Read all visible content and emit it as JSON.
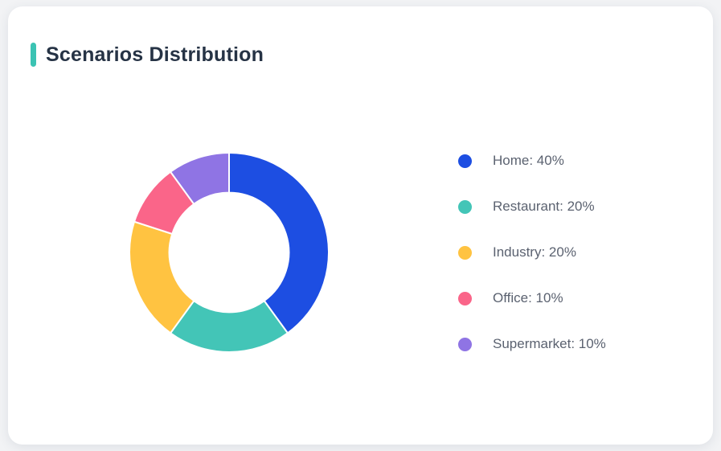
{
  "page": {
    "background_color": "#f2f3f5",
    "card_background": "#ffffff"
  },
  "card": {
    "title": "Scenarios Distribution",
    "accent_color": "#3bc3b3",
    "title_color": "#263345"
  },
  "chart_data": {
    "type": "pie",
    "donut": true,
    "title": "Scenarios Distribution",
    "start_angle_deg": 0,
    "direction": "clockwise",
    "inner_radius_ratio": 0.6,
    "legend_position": "right",
    "label_format": "{name}: {value}%",
    "unit": "%",
    "series": [
      {
        "name": "Home",
        "value": 40,
        "color": "#1d4ee2"
      },
      {
        "name": "Restaurant",
        "value": 20,
        "color": "#43c5b7"
      },
      {
        "name": "Industry",
        "value": 20,
        "color": "#ffc341"
      },
      {
        "name": "Office",
        "value": 10,
        "color": "#fa6589"
      },
      {
        "name": "Supermarket",
        "value": 10,
        "color": "#8f74e4"
      }
    ]
  }
}
